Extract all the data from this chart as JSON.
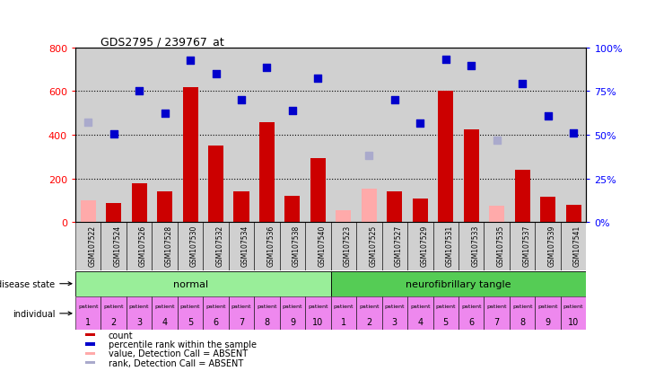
{
  "title": "GDS2795 / 239767_at",
  "samples": [
    "GSM107522",
    "GSM107524",
    "GSM107526",
    "GSM107528",
    "GSM107530",
    "GSM107532",
    "GSM107534",
    "GSM107536",
    "GSM107538",
    "GSM107540",
    "GSM107523",
    "GSM107525",
    "GSM107527",
    "GSM107529",
    "GSM107531",
    "GSM107533",
    "GSM107535",
    "GSM107537",
    "GSM107539",
    "GSM107541"
  ],
  "count_values": [
    null,
    90,
    180,
    140,
    620,
    350,
    140,
    460,
    120,
    295,
    null,
    null,
    140,
    110,
    600,
    425,
    null,
    240,
    115,
    80
  ],
  "count_absent": [
    100,
    null,
    null,
    null,
    null,
    null,
    null,
    null,
    null,
    null,
    55,
    155,
    null,
    null,
    null,
    null,
    75,
    null,
    null,
    null
  ],
  "rank_values": [
    null,
    405,
    600,
    500,
    740,
    680,
    560,
    710,
    510,
    660,
    null,
    null,
    560,
    455,
    745,
    715,
    null,
    635,
    485,
    410
  ],
  "rank_absent": [
    460,
    null,
    null,
    null,
    null,
    null,
    null,
    null,
    null,
    null,
    null,
    305,
    null,
    null,
    null,
    null,
    375,
    null,
    null,
    null
  ],
  "patient_labels": [
    "1",
    "2",
    "3",
    "4",
    "5",
    "6",
    "7",
    "8",
    "9",
    "10",
    "1",
    "2",
    "3",
    "4",
    "5",
    "6",
    "7",
    "8",
    "9",
    "10"
  ],
  "ylim_left": [
    0,
    800
  ],
  "ylim_right": [
    0,
    100
  ],
  "yticks_left": [
    0,
    200,
    400,
    600,
    800
  ],
  "ytick_labels_left": [
    "0",
    "200",
    "400",
    "600",
    "800"
  ],
  "yticks_right_vals": [
    0,
    25,
    50,
    75,
    100
  ],
  "ytick_labels_right": [
    "0%",
    "25%",
    "50%",
    "75%",
    "100%"
  ],
  "bar_color": "#cc0000",
  "bar_absent_color": "#ffaaaa",
  "dot_color": "#0000cc",
  "dot_absent_color": "#aaaacc",
  "normal_color": "#99ee99",
  "neuro_color": "#55cc55",
  "patient_color": "#ee88ee",
  "bg_color": "#ffffff",
  "plot_bg_color": "#ffffff",
  "col_bg_color": "#d0d0d0",
  "legend_items": [
    [
      "#cc0000",
      "count"
    ],
    [
      "#0000cc",
      "percentile rank within the sample"
    ],
    [
      "#ffaaaa",
      "value, Detection Call = ABSENT"
    ],
    [
      "#aaaacc",
      "rank, Detection Call = ABSENT"
    ]
  ]
}
